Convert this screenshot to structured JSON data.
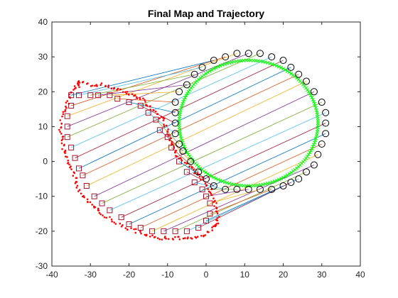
{
  "chart_data": {
    "type": "scatter",
    "title": "Final Map and Trajectory",
    "xlabel": "",
    "ylabel": "",
    "xlim": [
      -40,
      40
    ],
    "ylim": [
      -30,
      40
    ],
    "xticks": [
      -40,
      -30,
      -20,
      -10,
      0,
      10,
      20,
      30,
      40
    ],
    "yticks": [
      -30,
      -20,
      -10,
      0,
      10,
      20,
      30,
      40
    ],
    "grid": false,
    "box": true,
    "line_colors": [
      "#0072bd",
      "#d95319",
      "#edb120",
      "#7e2f8e",
      "#77ac30",
      "#4dbeee",
      "#a2142f"
    ],
    "series": [
      {
        "kind": "true_landmarks",
        "marker": "circle",
        "color": "#000000",
        "points": [
          [
            2,
            29
          ],
          [
            5,
            30
          ],
          [
            8,
            31
          ],
          [
            11,
            31
          ],
          [
            14,
            31
          ],
          [
            17,
            30
          ],
          [
            20,
            29
          ],
          [
            22,
            27
          ],
          [
            24,
            25
          ],
          [
            26,
            23
          ],
          [
            28,
            20
          ],
          [
            30,
            17
          ],
          [
            31,
            14
          ],
          [
            31,
            11
          ],
          [
            31,
            8
          ],
          [
            30,
            5
          ],
          [
            29,
            2
          ],
          [
            28,
            -1
          ],
          [
            26,
            -3
          ],
          [
            24,
            -5
          ],
          [
            22,
            -6
          ],
          [
            20,
            -7
          ],
          [
            17,
            -8
          ],
          [
            14,
            -8
          ],
          [
            11,
            -8
          ],
          [
            8,
            -8
          ],
          [
            5,
            -8
          ],
          [
            2,
            -7
          ],
          [
            0,
            -5
          ],
          [
            -2,
            -3
          ],
          [
            -4,
            0
          ],
          [
            -6,
            3
          ],
          [
            -7,
            5
          ],
          [
            -8,
            8
          ],
          [
            -8,
            11
          ],
          [
            -8,
            14
          ],
          [
            -8,
            17
          ],
          [
            -7,
            20
          ],
          [
            -5,
            22
          ],
          [
            -3,
            25
          ],
          [
            -1,
            27
          ]
        ]
      },
      {
        "kind": "estimated_landmarks",
        "marker": "square",
        "color": "#a2142f",
        "points": [
          [
            -35,
            19
          ],
          [
            -35,
            16
          ],
          [
            -36,
            13
          ],
          [
            -36,
            10
          ],
          [
            -36,
            7
          ],
          [
            -35,
            4
          ],
          [
            -34,
            1
          ],
          [
            -33,
            -2
          ],
          [
            -32,
            -4
          ],
          [
            -31,
            -7
          ],
          [
            -29,
            -10
          ],
          [
            -27,
            -12
          ],
          [
            -25,
            -14
          ],
          [
            -22,
            -16
          ],
          [
            -20,
            -18
          ],
          [
            -17,
            -19
          ],
          [
            -14,
            -20
          ],
          [
            -11,
            -20
          ],
          [
            -8,
            -20
          ],
          [
            -5,
            -20
          ],
          [
            -2,
            -19
          ],
          [
            0,
            -17
          ],
          [
            1,
            -15
          ],
          [
            1,
            -12
          ],
          [
            0,
            -10
          ],
          [
            -1,
            -8
          ],
          [
            -3,
            -6
          ],
          [
            -5,
            -3
          ],
          [
            -7,
            0
          ],
          [
            -9,
            4
          ],
          [
            -10,
            7
          ],
          [
            -12,
            9
          ],
          [
            -13,
            12
          ],
          [
            -15,
            14
          ],
          [
            -17,
            16
          ],
          [
            -20,
            17
          ],
          [
            -23,
            18
          ],
          [
            -25,
            19
          ],
          [
            -28,
            19
          ],
          [
            -30,
            19
          ],
          [
            -33,
            19
          ]
        ]
      },
      {
        "kind": "true_trajectory",
        "marker": "x",
        "color": "#00ff00",
        "center": [
          11,
          11
        ],
        "radius": 18
      },
      {
        "kind": "estimated_trajectory",
        "marker": "dot",
        "color": "#ff0000",
        "points": [
          [
            -33,
            23
          ],
          [
            -30,
            22
          ],
          [
            -27,
            22
          ],
          [
            -24,
            21
          ],
          [
            -21,
            20
          ],
          [
            -19,
            19
          ],
          [
            -17,
            18
          ],
          [
            -15,
            16
          ],
          [
            -13,
            14
          ],
          [
            -11,
            12
          ],
          [
            -10,
            9
          ],
          [
            -9,
            6
          ],
          [
            -8,
            3
          ],
          [
            -7,
            1
          ],
          [
            -5,
            -1
          ],
          [
            -3,
            -3
          ],
          [
            -1,
            -5
          ],
          [
            1,
            -8
          ],
          [
            2,
            -11
          ],
          [
            3,
            -14
          ],
          [
            3,
            -17
          ],
          [
            2,
            -19
          ],
          [
            0,
            -21
          ],
          [
            -3,
            -22
          ],
          [
            -6,
            -22
          ],
          [
            -9,
            -22
          ],
          [
            -12,
            -22
          ],
          [
            -15,
            -21
          ],
          [
            -18,
            -20
          ],
          [
            -21,
            -19
          ],
          [
            -24,
            -17
          ],
          [
            -27,
            -15
          ],
          [
            -29,
            -13
          ],
          [
            -31,
            -11
          ],
          [
            -33,
            -8
          ],
          [
            -34,
            -5
          ],
          [
            -35,
            -2
          ],
          [
            -36,
            1
          ],
          [
            -37,
            4
          ],
          [
            -37,
            7
          ],
          [
            -38,
            10
          ],
          [
            -37,
            14
          ],
          [
            -36,
            17
          ],
          [
            -35,
            20
          ],
          [
            -33,
            22
          ]
        ]
      }
    ]
  }
}
